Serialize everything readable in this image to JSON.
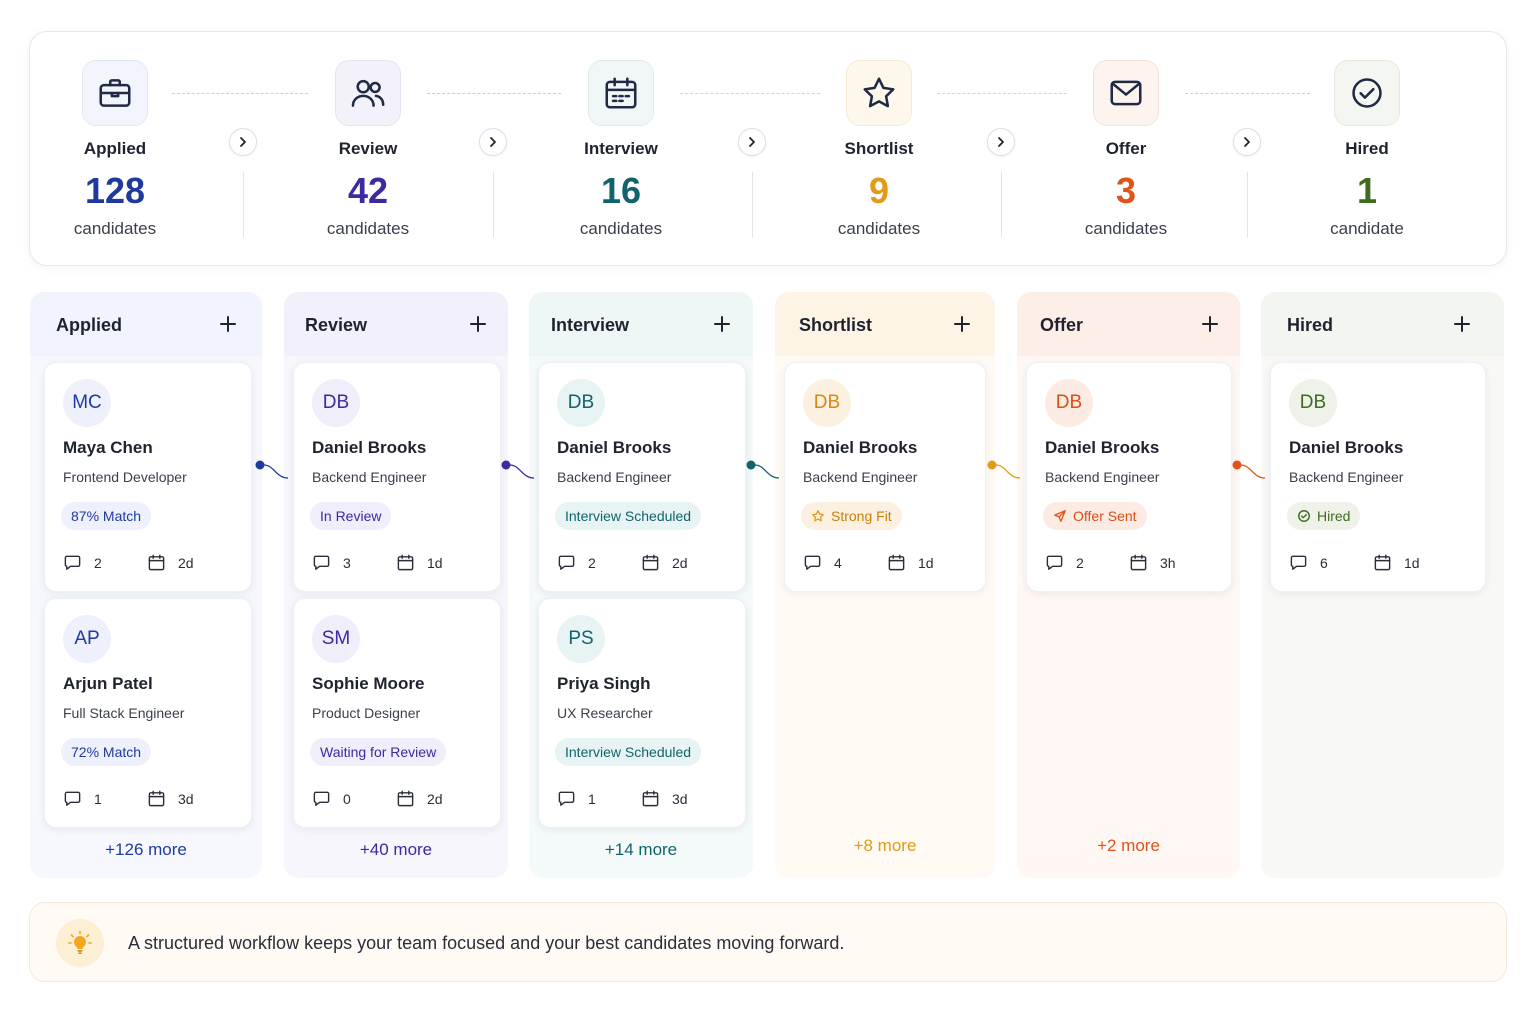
{
  "stages": [
    {
      "label": "Applied",
      "count": "128",
      "unit": "candidates",
      "color": "#1e3a9e",
      "icon": "briefcase-icon"
    },
    {
      "label": "Review",
      "count": "42",
      "unit": "candidates",
      "color": "#3b2aa0",
      "icon": "users-icon"
    },
    {
      "label": "Interview",
      "count": "16",
      "unit": "candidates",
      "color": "#11636c",
      "icon": "calendar-icon"
    },
    {
      "label": "Shortlist",
      "count": "9",
      "unit": "candidates",
      "color": "#e39a16",
      "icon": "star-icon"
    },
    {
      "label": "Offer",
      "count": "3",
      "unit": "candidates",
      "color": "#e0541a",
      "icon": "mail-icon"
    },
    {
      "label": "Hired",
      "count": "1",
      "unit": "candidate",
      "color": "#3e6b20",
      "icon": "check-circle-icon"
    }
  ],
  "columns": [
    {
      "title": "Applied",
      "more": "+126 more",
      "cards": [
        {
          "initials": "MC",
          "name": "Maya Chen",
          "role": "Frontend Developer",
          "badge": "87% Match",
          "comments": "2",
          "age": "2d"
        },
        {
          "initials": "AP",
          "name": "Arjun Patel",
          "role": "Full Stack Engineer",
          "badge": "72% Match",
          "comments": "1",
          "age": "3d"
        }
      ]
    },
    {
      "title": "Review",
      "more": "+40 more",
      "cards": [
        {
          "initials": "DB",
          "name": "Daniel Brooks",
          "role": "Backend Engineer",
          "badge": "In Review",
          "comments": "3",
          "age": "1d"
        },
        {
          "initials": "SM",
          "name": "Sophie Moore",
          "role": "Product Designer",
          "badge": "Waiting for Review",
          "comments": "0",
          "age": "2d"
        }
      ]
    },
    {
      "title": "Interview",
      "more": "+14 more",
      "cards": [
        {
          "initials": "DB",
          "name": "Daniel Brooks",
          "role": "Backend Engineer",
          "badge": "Interview Scheduled",
          "comments": "2",
          "age": "2d"
        },
        {
          "initials": "PS",
          "name": "Priya Singh",
          "role": "UX Researcher",
          "badge": "Interview Scheduled",
          "comments": "1",
          "age": "3d"
        }
      ]
    },
    {
      "title": "Shortlist",
      "more": "+8 more",
      "cards": [
        {
          "initials": "DB",
          "name": "Daniel Brooks",
          "role": "Backend Engineer",
          "badge": "Strong Fit",
          "badge_icon": "star-icon",
          "comments": "4",
          "age": "1d"
        }
      ]
    },
    {
      "title": "Offer",
      "more": "+2 more",
      "cards": [
        {
          "initials": "DB",
          "name": "Daniel Brooks",
          "role": "Backend Engineer",
          "badge": "Offer Sent",
          "badge_icon": "send-icon",
          "comments": "2",
          "age": "3h"
        }
      ]
    },
    {
      "title": "Hired",
      "more": "",
      "cards": [
        {
          "initials": "DB",
          "name": "Daniel Brooks",
          "role": "Backend Engineer",
          "badge": "Hired",
          "badge_icon": "check-circle-icon",
          "comments": "6",
          "age": "1d"
        }
      ]
    }
  ],
  "tip": {
    "icon": "lightbulb-icon",
    "text": "A structured workflow keeps your team focused and your best candidates moving forward."
  }
}
